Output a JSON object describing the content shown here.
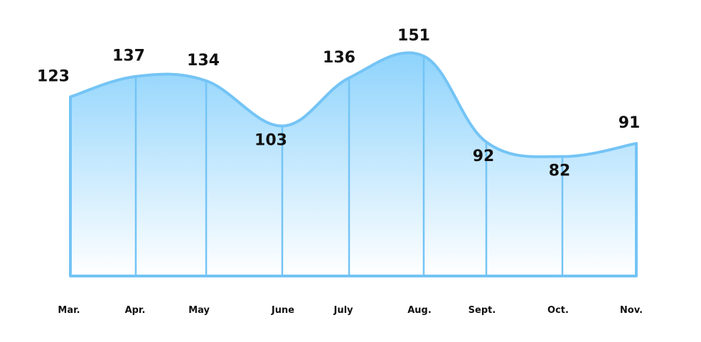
{
  "chart_data": {
    "type": "area",
    "title": "",
    "xlabel": "",
    "ylabel": "",
    "categories": [
      "Mar.",
      "Apr.",
      "May",
      "June",
      "July",
      "Aug.",
      "Sept.",
      "Oct.",
      "Nov."
    ],
    "values": [
      123,
      137,
      134,
      103,
      136,
      151,
      92,
      82,
      91
    ],
    "data_labels": [
      "123",
      "137",
      "134",
      "103",
      "136",
      "151",
      "92",
      "82",
      "91"
    ],
    "ylim": [
      0,
      170
    ],
    "grid": false,
    "legend": "none",
    "colors": {
      "line": "#74C4F5",
      "fill_top": "#8ED3FC",
      "fill_bottom": "#FFFFFF",
      "text": "#111111"
    }
  }
}
